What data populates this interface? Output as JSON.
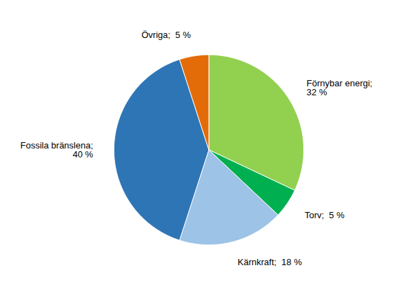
{
  "chart_data": {
    "type": "pie",
    "categories": [
      "Förnybar energi;\n32 %",
      "Torv;  5 %",
      "Kärnkraft;  18 %",
      "Fossila bränslena;\n40 %",
      "Övriga;  5 %"
    ],
    "values": [
      32,
      5,
      18,
      40,
      5
    ],
    "colors": [
      "#92D050",
      "#00B050",
      "#9DC3E6",
      "#2E75B6",
      "#E36C09"
    ]
  }
}
